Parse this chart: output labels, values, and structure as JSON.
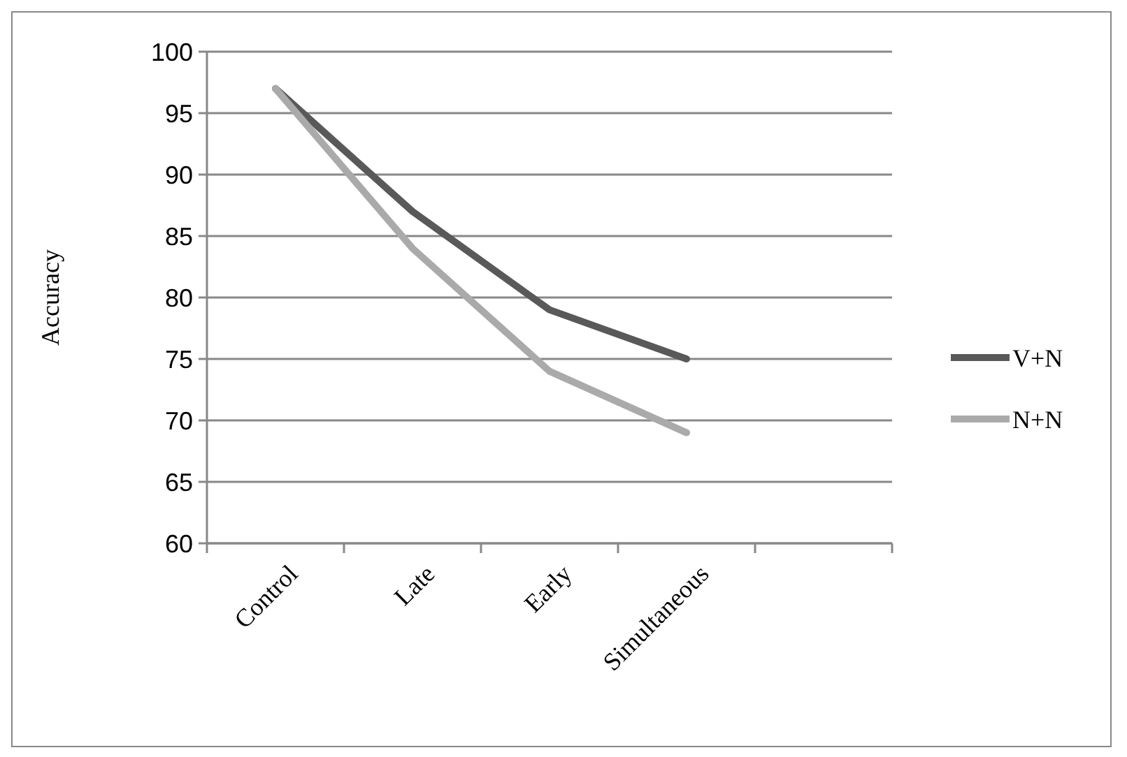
{
  "chart_data": {
    "type": "line",
    "ylabel": "Accuracy",
    "categories": [
      "Control",
      "Late",
      "Early",
      "Simultaneous",
      null
    ],
    "series": [
      {
        "name": "V+N",
        "color": "#595959",
        "values": [
          97,
          87,
          79,
          75,
          null
        ]
      },
      {
        "name": "N+N",
        "color": "#aaaaaa",
        "values": [
          97,
          84,
          74,
          69,
          null
        ]
      }
    ],
    "ylim": [
      60,
      100
    ],
    "yticks": [
      60,
      65,
      70,
      75,
      80,
      85,
      90,
      95,
      100
    ],
    "grid": "y",
    "legend": "right",
    "marker": "none"
  }
}
